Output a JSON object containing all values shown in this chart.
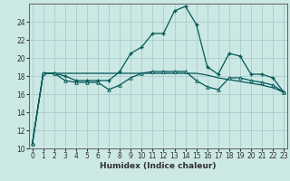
{
  "xlabel": "Humidex (Indice chaleur)",
  "background_color": "#cce8e4",
  "grid_color": "#aaccca",
  "line_color": "#005858",
  "x_values": [
    0,
    1,
    2,
    3,
    4,
    5,
    6,
    7,
    8,
    9,
    10,
    11,
    12,
    13,
    14,
    15,
    16,
    17,
    18,
    19,
    20,
    21,
    22,
    23
  ],
  "series1": [
    10.5,
    18.3,
    18.3,
    18.0,
    17.5,
    17.5,
    17.5,
    17.5,
    18.5,
    20.5,
    21.2,
    22.7,
    22.7,
    25.2,
    25.7,
    23.7,
    19.0,
    18.2,
    20.5,
    20.2,
    18.2,
    18.2,
    17.8,
    16.2
  ],
  "series2": [
    10.5,
    18.3,
    18.3,
    18.3,
    18.3,
    18.3,
    18.3,
    18.3,
    18.3,
    18.3,
    18.3,
    18.3,
    18.3,
    18.3,
    18.3,
    18.3,
    18.1,
    17.8,
    17.6,
    17.4,
    17.2,
    17.0,
    16.7,
    16.2
  ],
  "series3": [
    10.5,
    18.3,
    18.3,
    17.5,
    17.3,
    17.3,
    17.3,
    16.5,
    17.0,
    17.8,
    18.3,
    18.5,
    18.5,
    18.5,
    18.5,
    17.5,
    16.8,
    16.5,
    17.8,
    17.8,
    17.5,
    17.3,
    17.0,
    16.2
  ],
  "ylim": [
    10,
    26
  ],
  "xlim": [
    -0.3,
    23.3
  ],
  "yticks": [
    10,
    12,
    14,
    16,
    18,
    20,
    22,
    24
  ],
  "xticks": [
    0,
    1,
    2,
    3,
    4,
    5,
    6,
    7,
    8,
    9,
    10,
    11,
    12,
    13,
    14,
    15,
    16,
    17,
    18,
    19,
    20,
    21,
    22,
    23
  ]
}
